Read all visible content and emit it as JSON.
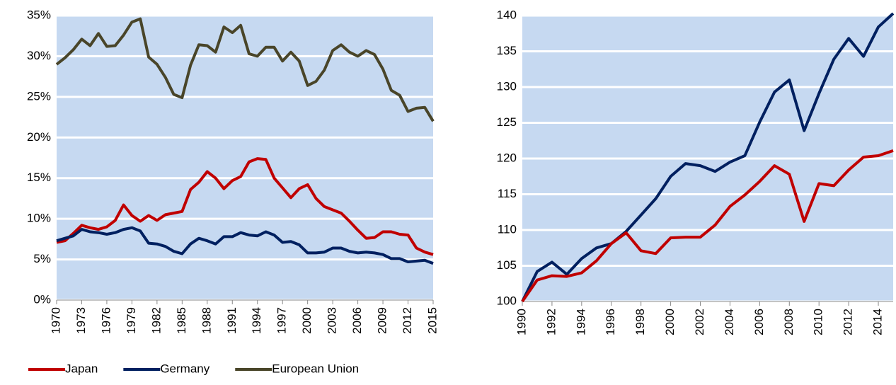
{
  "chart_data": [
    {
      "type": "line",
      "x": [
        1970,
        1971,
        1972,
        1973,
        1974,
        1975,
        1976,
        1977,
        1978,
        1979,
        1980,
        1981,
        1982,
        1983,
        1984,
        1985,
        1986,
        1987,
        1988,
        1989,
        1990,
        1991,
        1992,
        1993,
        1994,
        1995,
        1996,
        1997,
        1998,
        1999,
        2000,
        2001,
        2002,
        2003,
        2004,
        2005,
        2006,
        2007,
        2008,
        2009,
        2010,
        2011,
        2012,
        2013,
        2014,
        2015
      ],
      "xlim": [
        1970,
        2015
      ],
      "xticks": [
        1970,
        1973,
        1976,
        1979,
        1982,
        1985,
        1988,
        1991,
        1994,
        1997,
        2000,
        2003,
        2006,
        2009,
        2012,
        2015
      ],
      "ylim": [
        0,
        35
      ],
      "yticks": [
        {
          "value": 0,
          "label": "0%"
        },
        {
          "value": 5,
          "label": "5%"
        },
        {
          "value": 10,
          "label": "10%"
        },
        {
          "value": 15,
          "label": "15%"
        },
        {
          "value": 20,
          "label": "20%"
        },
        {
          "value": 25,
          "label": "25%"
        },
        {
          "value": 30,
          "label": "30%"
        },
        {
          "value": 35,
          "label": "35%"
        }
      ],
      "grid": true,
      "legend": "bottom",
      "series": [
        {
          "name": "Japan",
          "color": "#c00000",
          "values": [
            7.1,
            7.3,
            8.2,
            9.2,
            8.9,
            8.7,
            9.0,
            9.8,
            11.7,
            10.4,
            9.7,
            10.4,
            9.8,
            10.5,
            10.7,
            10.9,
            13.6,
            14.5,
            15.8,
            15.0,
            13.7,
            14.7,
            15.2,
            17.0,
            17.4,
            17.3,
            15.0,
            13.8,
            12.6,
            13.7,
            14.2,
            12.5,
            11.5,
            11.1,
            10.7,
            9.7,
            8.6,
            7.6,
            7.7,
            8.4,
            8.4,
            8.1,
            8.0,
            6.4,
            5.9,
            5.6
          ]
        },
        {
          "name": "Germany",
          "color": "#002060",
          "values": [
            7.3,
            7.6,
            7.9,
            8.7,
            8.4,
            8.3,
            8.1,
            8.3,
            8.7,
            8.9,
            8.5,
            7.0,
            6.9,
            6.6,
            6.0,
            5.7,
            6.9,
            7.6,
            7.3,
            6.9,
            7.8,
            7.8,
            8.3,
            8.0,
            7.9,
            8.4,
            8.0,
            7.1,
            7.2,
            6.8,
            5.8,
            5.8,
            5.9,
            6.4,
            6.4,
            6.0,
            5.8,
            5.9,
            5.8,
            5.6,
            5.1,
            5.1,
            4.7,
            4.8,
            4.9,
            4.5
          ]
        },
        {
          "name": "European Union",
          "color": "#494529",
          "values": [
            29.0,
            29.8,
            30.8,
            32.1,
            31.3,
            32.8,
            31.2,
            31.3,
            32.6,
            34.2,
            34.6,
            29.9,
            29.0,
            27.4,
            25.3,
            24.9,
            28.9,
            31.4,
            31.3,
            30.5,
            33.6,
            32.9,
            33.8,
            30.3,
            30.0,
            31.1,
            31.1,
            29.4,
            30.5,
            29.4,
            26.4,
            26.9,
            28.3,
            30.7,
            31.4,
            30.5,
            30.0,
            30.7,
            30.2,
            28.4,
            25.8,
            25.2,
            23.2,
            23.6,
            23.7,
            22.0
          ]
        }
      ]
    },
    {
      "type": "line",
      "x": [
        1990,
        1991,
        1992,
        1993,
        1994,
        1995,
        1996,
        1997,
        1998,
        1999,
        2000,
        2001,
        2002,
        2003,
        2004,
        2005,
        2006,
        2007,
        2008,
        2009,
        2010,
        2011,
        2012,
        2013,
        2014,
        2015
      ],
      "xlim": [
        1990,
        2015
      ],
      "xticks": [
        1990,
        1992,
        1994,
        1996,
        1998,
        2000,
        2002,
        2004,
        2006,
        2008,
        2010,
        2012,
        2014
      ],
      "ylim": [
        100,
        140
      ],
      "yticks": [
        100,
        105,
        110,
        115,
        120,
        125,
        130,
        135,
        140
      ],
      "grid": true,
      "series": [
        {
          "color": "#002060",
          "values": [
            100,
            104.2,
            105.5,
            103.8,
            106.0,
            107.5,
            108.1,
            109.8,
            112.1,
            114.4,
            117.5,
            119.3,
            119.0,
            118.2,
            119.5,
            120.4,
            125.1,
            129.3,
            131.0,
            123.9,
            129.1,
            133.9,
            136.8,
            134.3,
            138.4,
            140.3
          ]
        },
        {
          "color": "#c00000",
          "values": [
            100,
            103.0,
            103.6,
            103.5,
            104.0,
            105.7,
            108.1,
            109.6,
            107.1,
            106.7,
            108.9,
            109.0,
            109.0,
            110.7,
            113.3,
            114.9,
            116.8,
            119.0,
            117.8,
            111.2,
            116.5,
            116.2,
            118.4,
            120.2,
            120.4,
            121.1
          ]
        }
      ]
    }
  ]
}
